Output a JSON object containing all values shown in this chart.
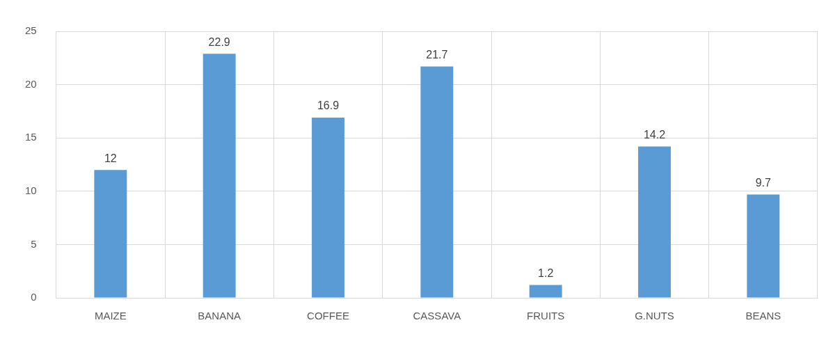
{
  "chart_data": {
    "type": "bar",
    "categories": [
      "MAIZE",
      "BANANA",
      "COFFEE",
      "CASSAVA",
      "FRUITS",
      "G.NUTS",
      "BEANS"
    ],
    "values": [
      12,
      22.9,
      16.9,
      21.7,
      1.2,
      14.2,
      9.7
    ],
    "color": "#5b9bd5",
    "ylim": [
      0,
      25
    ],
    "yticks": [
      0,
      5,
      10,
      15,
      20,
      25
    ],
    "grid": true,
    "data_labels": true,
    "legend": false
  }
}
